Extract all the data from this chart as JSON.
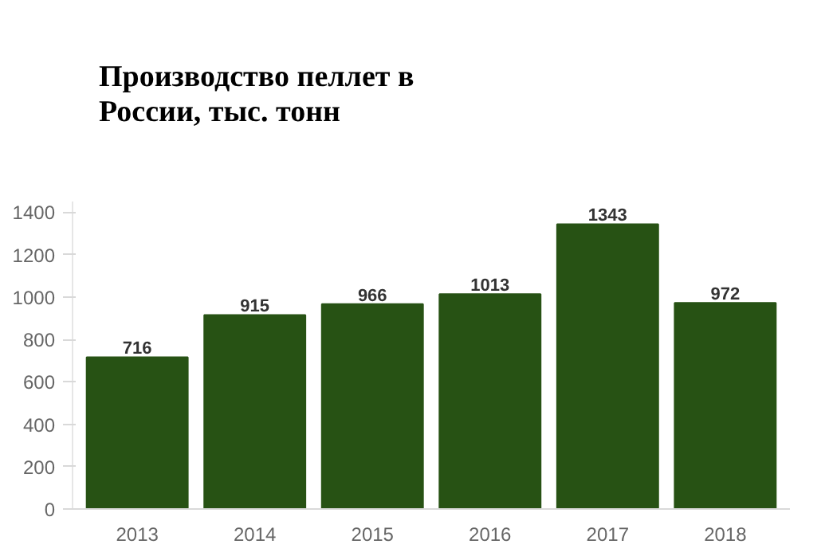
{
  "chart_data": {
    "type": "bar",
    "title": "Производство пеллет в России, тыс. тонн",
    "categories": [
      "2013",
      "2014",
      "2015",
      "2016",
      "2017",
      "2018"
    ],
    "values": [
      716,
      915,
      966,
      1013,
      1343,
      972
    ],
    "color": "#275214",
    "ylim": [
      0,
      1450
    ],
    "yticks": [
      0,
      200,
      400,
      600,
      800,
      1000,
      1200,
      1400
    ],
    "grid": false,
    "data_labels": true
  }
}
